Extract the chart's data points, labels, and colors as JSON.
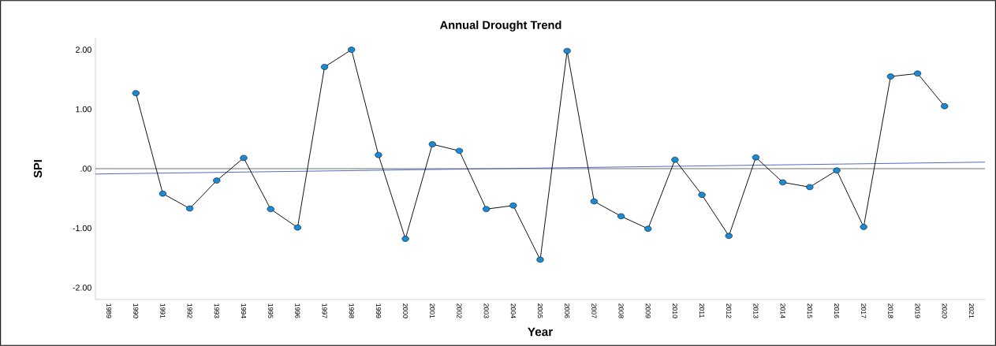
{
  "chart_data": {
    "type": "line",
    "title": "Annual  Drought Trend",
    "xlabel": "Year",
    "ylabel": "SPI",
    "x": [
      1990,
      1991,
      1992,
      1993,
      1994,
      1995,
      1996,
      1997,
      1998,
      1999,
      2000,
      2001,
      2002,
      2003,
      2004,
      2005,
      2006,
      2007,
      2008,
      2009,
      2010,
      2011,
      2012,
      2013,
      2014,
      2015,
      2016,
      2017,
      2018,
      2019,
      2020
    ],
    "series": [
      {
        "color": "#1a8ad4",
        "marker": "circle",
        "values": [
          1.27,
          -0.42,
          -0.67,
          -0.2,
          0.18,
          -0.68,
          -0.99,
          1.71,
          2.0,
          0.23,
          -1.18,
          0.41,
          0.3,
          -0.68,
          -0.62,
          -1.53,
          1.98,
          -0.55,
          -0.8,
          -1.01,
          0.15,
          -0.44,
          -1.13,
          0.19,
          -0.23,
          -0.31,
          -0.03,
          -0.98,
          1.55,
          1.6,
          1.05
        ]
      },
      {
        "type": "line",
        "color": "#4a5fc1",
        "marker": "none",
        "x": [
          1988.5,
          2021.5
        ],
        "values": [
          -0.09,
          0.11
        ]
      }
    ],
    "xlim": [
      1988.5,
      2021.5
    ],
    "ylim": [
      -2.2,
      2.2
    ],
    "xticks": [
      1989,
      1990,
      1991,
      1992,
      1993,
      1994,
      1995,
      1996,
      1997,
      1998,
      1999,
      2000,
      2001,
      2002,
      2003,
      2004,
      2005,
      2006,
      2007,
      2008,
      2009,
      2010,
      2011,
      2012,
      2013,
      2014,
      2015,
      2016,
      2017,
      2018,
      2019,
      2020,
      2021
    ],
    "yticks": [
      {
        "value": -2,
        "label": "-2.00"
      },
      {
        "value": -1,
        "label": "-1.00"
      },
      {
        "value": 0,
        "label": ".00"
      },
      {
        "value": 1,
        "label": "1.00"
      },
      {
        "value": 2,
        "label": "2.00"
      }
    ],
    "ref_lines": [
      {
        "axis": "y",
        "value": 0,
        "color": "#707070"
      }
    ],
    "grid": false
  }
}
